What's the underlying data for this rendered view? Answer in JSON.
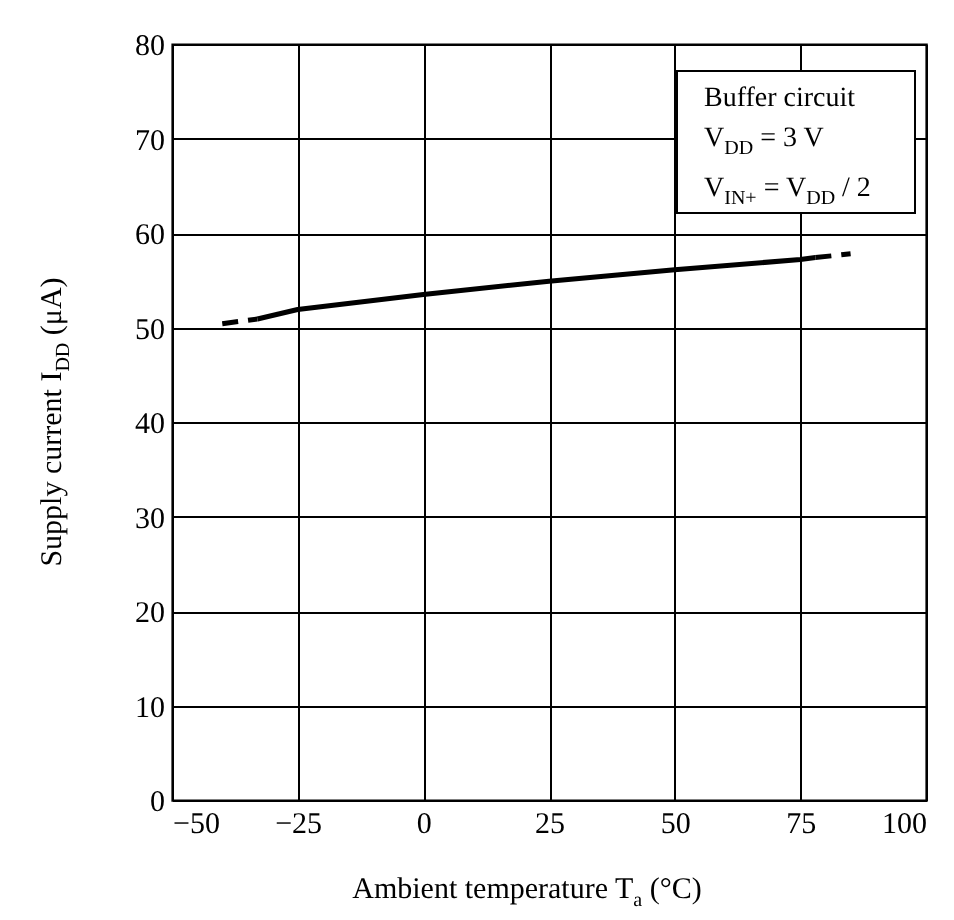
{
  "chart_data": {
    "type": "line",
    "xlabel": "Ambient temperature  T$_{a}$  (°C)",
    "ylabel": "Supply current  I$_{DD}$  (μA)",
    "annotations": [
      "Buffer circuit",
      "V$_{DD}$ = 3 V",
      "V$_{IN+}$ = V$_{DD}$ / 2"
    ],
    "series": [
      {
        "color": "#000000",
        "line_style": "dashed",
        "x": [
          -40,
          -33
        ],
        "values": [
          50.4,
          50.9
        ]
      },
      {
        "color": "#000000",
        "line_style": "solid",
        "x": [
          -33,
          -25,
          0,
          25,
          50,
          75,
          78
        ],
        "values": [
          50.9,
          51.9,
          53.5,
          54.9,
          56.1,
          57.2,
          57.4
        ]
      },
      {
        "color": "#000000",
        "line_style": "dashed",
        "x": [
          78,
          85
        ],
        "values": [
          57.4,
          57.8
        ]
      }
    ],
    "xlim": [
      -50,
      100
    ],
    "xticks": [
      -50,
      -25,
      0,
      25,
      50,
      75,
      100
    ],
    "ylim": [
      0,
      80
    ],
    "yticks": [
      0,
      10,
      20,
      30,
      40,
      50,
      60,
      70,
      80
    ],
    "grid": true,
    "marker": "none"
  }
}
